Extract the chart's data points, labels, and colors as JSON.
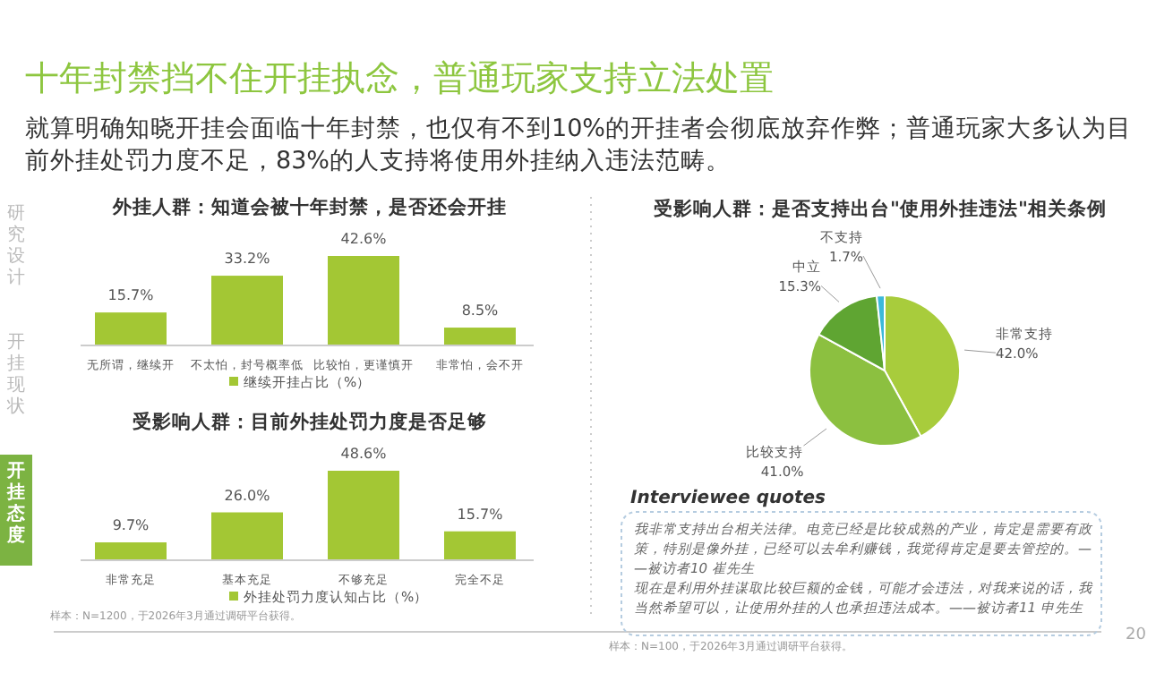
{
  "chart_data": [
    {
      "type": "other",
      "title": "十年封禁挡不住开挂执念，普通玩家支持立法处置",
      "subtitle": "就算明确知晓开挂会面临十年封禁，也仅有不到10%的开挂者会彻底放弃作弊；普通玩家大多认为目前外挂处罚力度不足，83%的人支持将使用外挂纳入违法范畴。",
      "annotations": [
        "研究设计",
        "开挂现状",
        "开挂态度",
        "20"
      ]
    },
    {
      "type": "bar",
      "title": "外挂人群：知道会被十年封禁，是否还会开挂",
      "categories": [
        "无所谓，继续开",
        "不太怕，封号概率低",
        "比较怕，更谨慎开",
        "非常怕，会不开"
      ],
      "series": [
        {
          "name": "继续开挂占比（%）",
          "color": "#a3c734",
          "values": [
            15.7,
            33.2,
            42.6,
            8.5
          ],
          "value_labels": [
            "15.7%",
            "33.2%",
            "42.6%",
            "8.5%"
          ]
        }
      ],
      "legend": "bottom"
    },
    {
      "type": "bar",
      "title": "受影响人群：目前外挂处罚力度是否足够",
      "categories": [
        "非常充足",
        "基本充足",
        "不够充足",
        "完全不足"
      ],
      "series": [
        {
          "name": "外挂处罚力度认知占比（%）",
          "color": "#a3c734",
          "values": [
            9.7,
            26.0,
            48.6,
            15.7
          ],
          "value_labels": [
            "9.7%",
            "26.0%",
            "48.6%",
            "15.7%"
          ]
        }
      ],
      "legend": "bottom",
      "annotations": [
        "样本：N=1200，于2026年3月通过调研平台获得。"
      ]
    },
    {
      "type": "pie",
      "title": "受影响人群：是否支持出台\"使用外挂违法\"相关条例",
      "categories": [
        "非常支持",
        "比较支持",
        "中立",
        "不支持"
      ],
      "values": [
        42.0,
        41.0,
        15.3,
        1.7
      ],
      "colors": [
        "#a8cc3c",
        "#8cc040",
        "#5fa532",
        "#3cb9d9"
      ],
      "value_labels": [
        "42.0%",
        "41.0%",
        "15.3%",
        "1.7%"
      ]
    },
    {
      "type": "other",
      "title": "Interviewee quotes",
      "annotations": [
        "我非常支持出台相关法律。电竞已经是比较成熟的产业，肯定是需要有政策，特别是像外挂，已经可以去牟利赚钱，我觉得肯定是要去管控的。——被访者10 崔先生",
        "现在是利用外挂谋取比较巨额的金钱，可能才会违法，对我来说的话，我当然希望可以，让使用外挂的人也承担违法成本。——被访者11 申先生",
        "样本：N=100，于2026年3月通过调研平台获得。"
      ]
    }
  ]
}
